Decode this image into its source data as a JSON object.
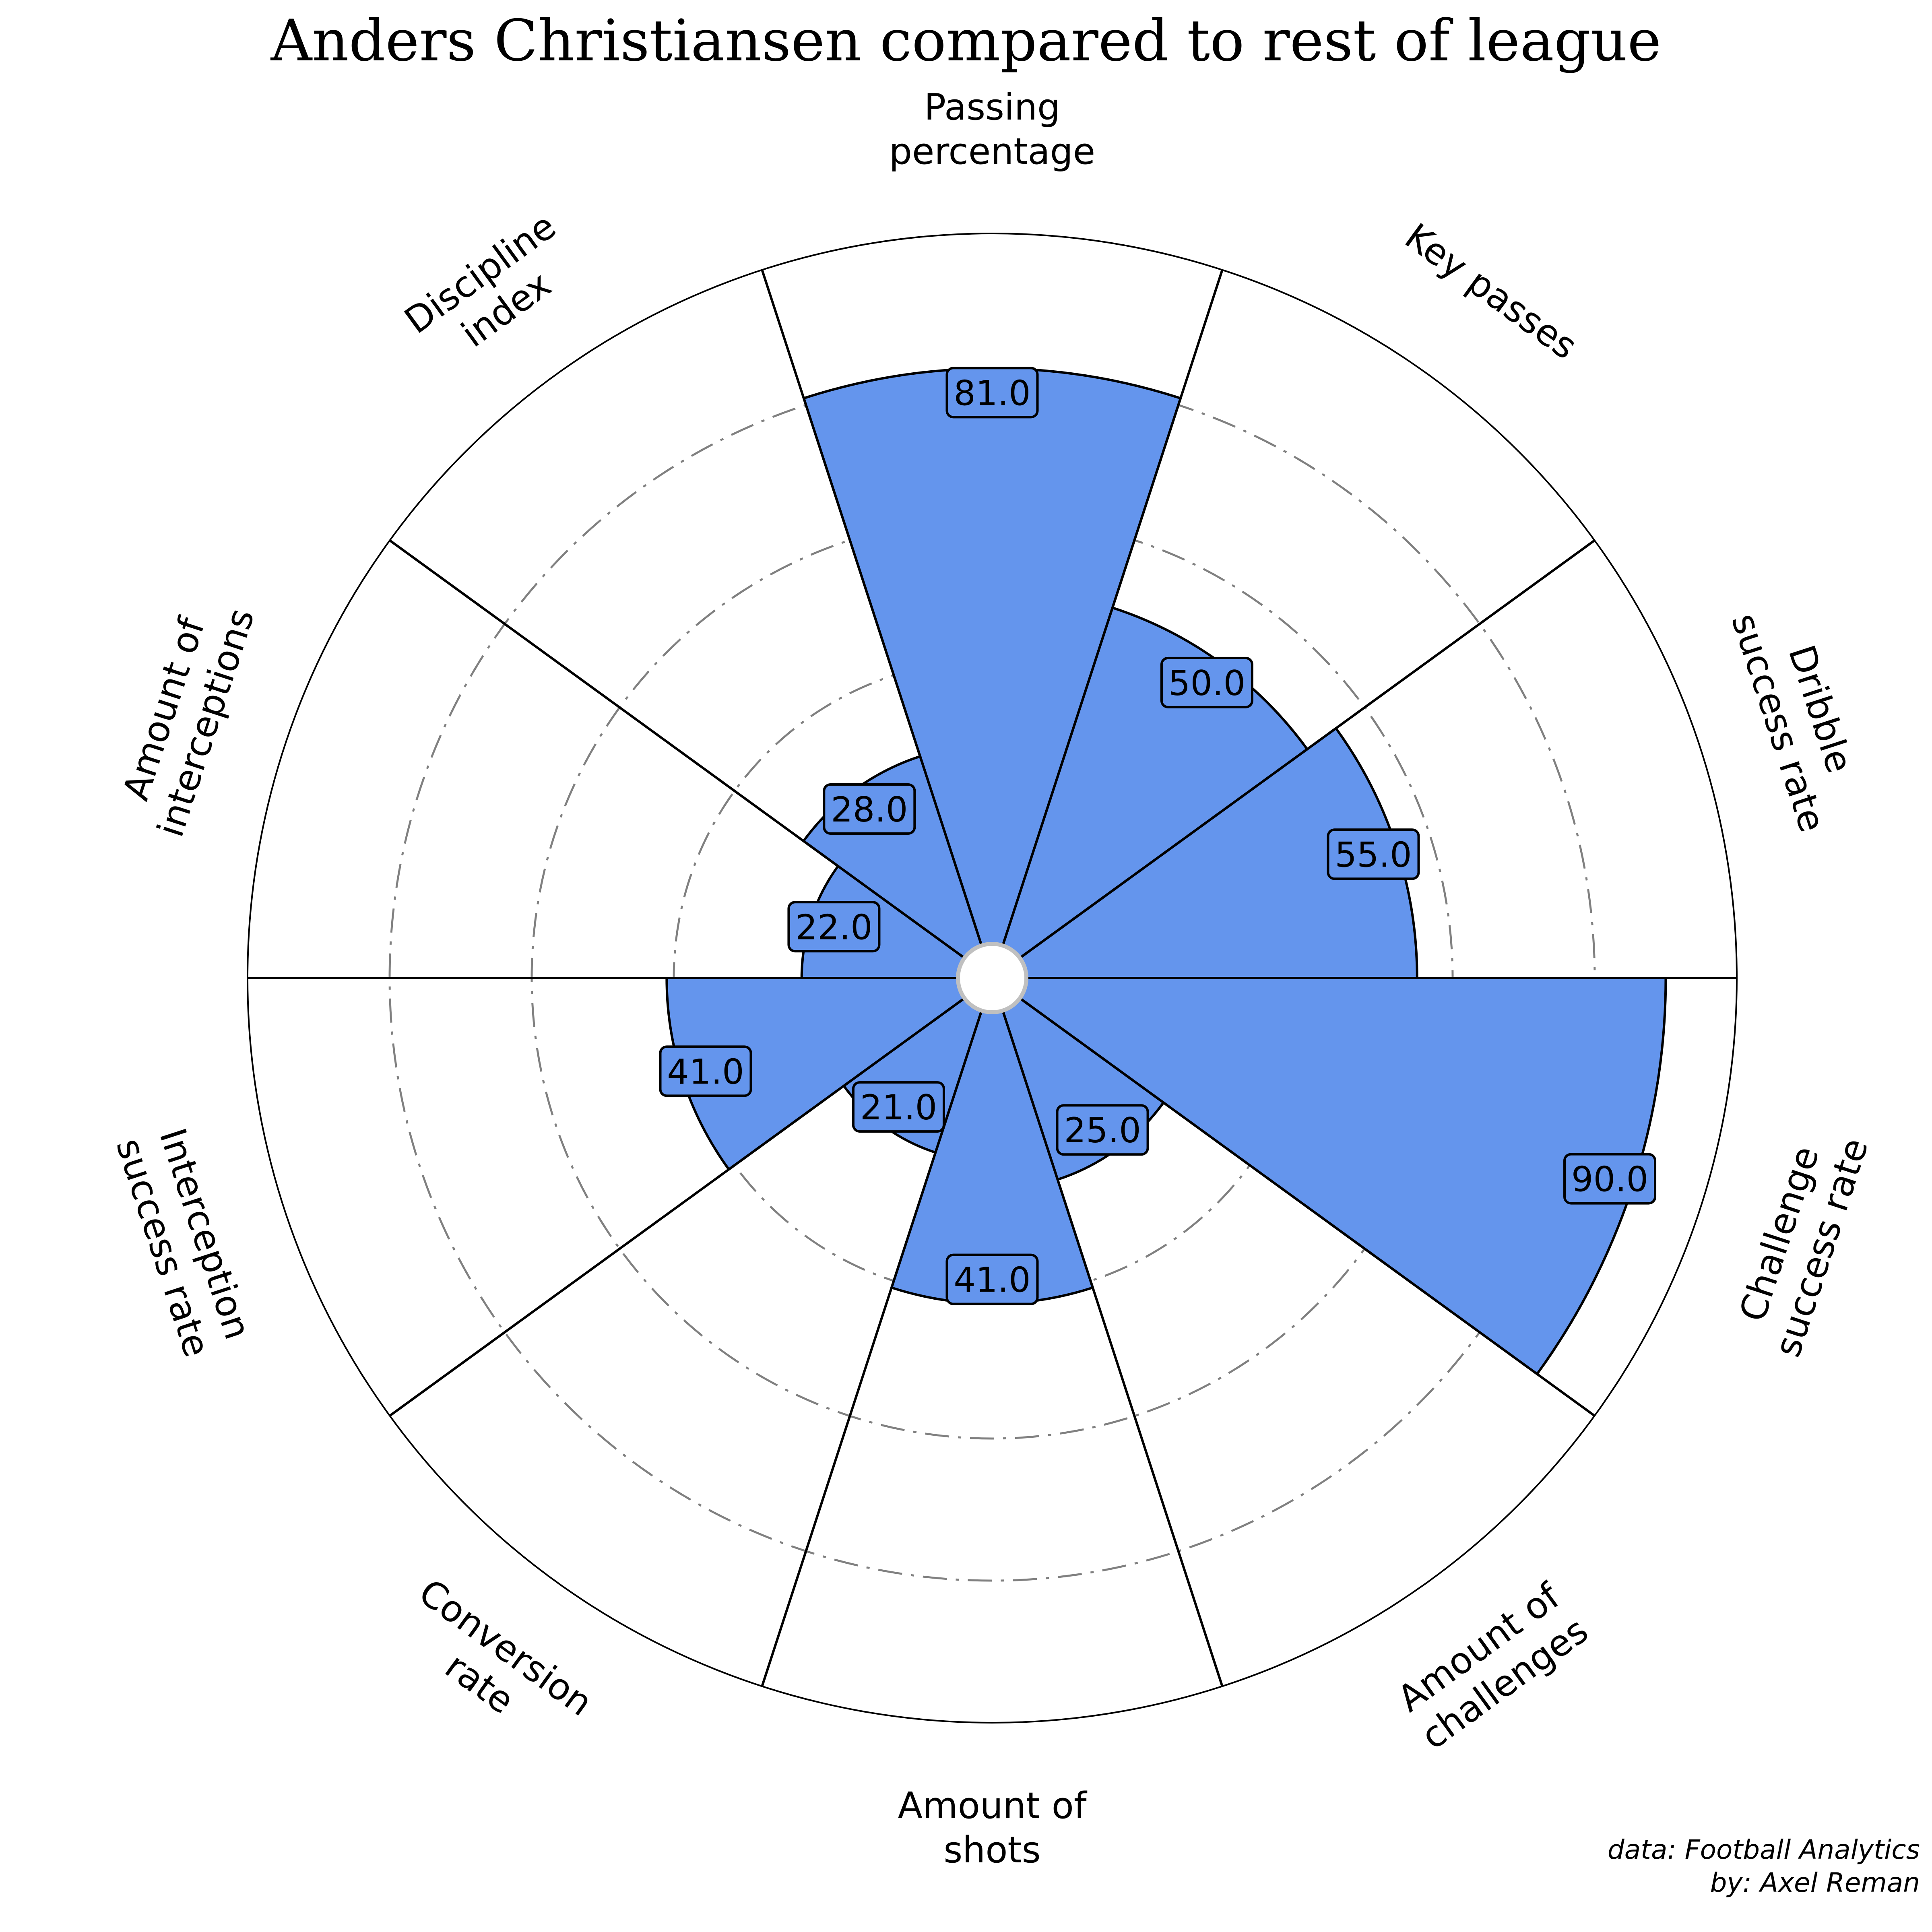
{
  "chart_data": {
    "type": "polar-bar",
    "title": "Anders Christiansen compared to rest of league",
    "categories": [
      "Passing\npercentage",
      "Key passes",
      "Dribble\nsuccess rate",
      "Challenge\nsuccess rate",
      "Amount of\nchallenges",
      "Amount of\nshots",
      "Conversion\nrate",
      "Interception\nsuccess rate",
      "Amount of\ninterceptions",
      "Discipline\nindex"
    ],
    "values": [
      81.0,
      50.0,
      55.0,
      90.0,
      25.0,
      41.0,
      21.0,
      41.0,
      22.0,
      28.0
    ],
    "value_labels": [
      "81.0",
      "50.0",
      "55.0",
      "90.0",
      "25.0",
      "41.0",
      "21.0",
      "41.0",
      "22.0",
      "28.0"
    ],
    "rlim": [
      0,
      100
    ],
    "gridlines": [
      20,
      40,
      60,
      80
    ],
    "grid": true,
    "start_direction": "top",
    "order": "clockwise",
    "bar_color": "#6495ED",
    "edge_color": "#000000",
    "grid_color": "#808080",
    "center_ring_color": "#C0C0C0"
  },
  "footer": {
    "source": "data: Football Analytics",
    "author": "by: Axel Reman"
  }
}
